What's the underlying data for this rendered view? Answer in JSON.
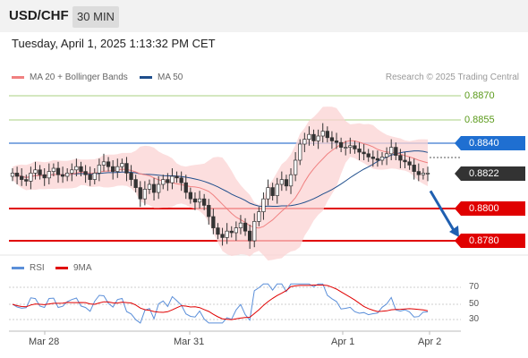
{
  "header": {
    "symbol": "USD/CHF",
    "timeframe": "30 MIN",
    "timestamp": "Tuesday, April 1, 2025 1:13:32 PM CET"
  },
  "legend": {
    "ma20": "MA 20 + Bollinger Bands",
    "ma50": "MA 50",
    "credit": "Research © 2025 Trading Central",
    "ma20_color": "#f08080",
    "ma50_color": "#1f4e8c"
  },
  "levels": {
    "r3": "0.8870",
    "r2": "0.8855",
    "r1": "0.8840",
    "last": "0.8822",
    "s1": "0.8800",
    "s2": "0.8780",
    "resistance_color": "#5a9a1a",
    "pivot_color": "#1f6fd1",
    "support_color": "#e00000"
  },
  "rsi": {
    "legend_rsi": "RSI",
    "legend_9ma": "9MA",
    "ticks": [
      "70",
      "50",
      "30"
    ]
  },
  "x_axis": {
    "dates": [
      "Mar 28",
      "Mar 31",
      "Apr 1",
      "Apr 2"
    ]
  },
  "chart_data": {
    "type": "candlestick",
    "ylim": [
      0.8772,
      0.888
    ],
    "close_series": [
      0.8822,
      0.882,
      0.8818,
      0.8817,
      0.8822,
      0.8824,
      0.8821,
      0.8819,
      0.8823,
      0.8825,
      0.8821,
      0.882,
      0.8822,
      0.8824,
      0.8826,
      0.8823,
      0.8821,
      0.8818,
      0.8822,
      0.8827,
      0.8829,
      0.8826,
      0.8823,
      0.8826,
      0.8828,
      0.8822,
      0.8818,
      0.8813,
      0.8806,
      0.8812,
      0.8815,
      0.881,
      0.8815,
      0.8818,
      0.8816,
      0.882,
      0.8819,
      0.8816,
      0.881,
      0.8806,
      0.8804,
      0.8806,
      0.8802,
      0.8795,
      0.8788,
      0.8784,
      0.8782,
      0.8786,
      0.8785,
      0.8788,
      0.8791,
      0.8786,
      0.878,
      0.8792,
      0.8798,
      0.8806,
      0.8813,
      0.8808,
      0.8815,
      0.8818,
      0.8814,
      0.8821,
      0.883,
      0.884,
      0.8843,
      0.8846,
      0.8842,
      0.8845,
      0.8848,
      0.8844,
      0.8842,
      0.8841,
      0.8838,
      0.8838,
      0.8839,
      0.8837,
      0.8835,
      0.8834,
      0.8832,
      0.8831,
      0.883,
      0.8832,
      0.8834,
      0.8838,
      0.8833,
      0.883,
      0.8829,
      0.8827,
      0.8823,
      0.8821,
      0.8822,
      0.8822
    ],
    "forecast": [
      0.8822,
      0.878
    ],
    "rsi_ylim": [
      25,
      80
    ]
  }
}
